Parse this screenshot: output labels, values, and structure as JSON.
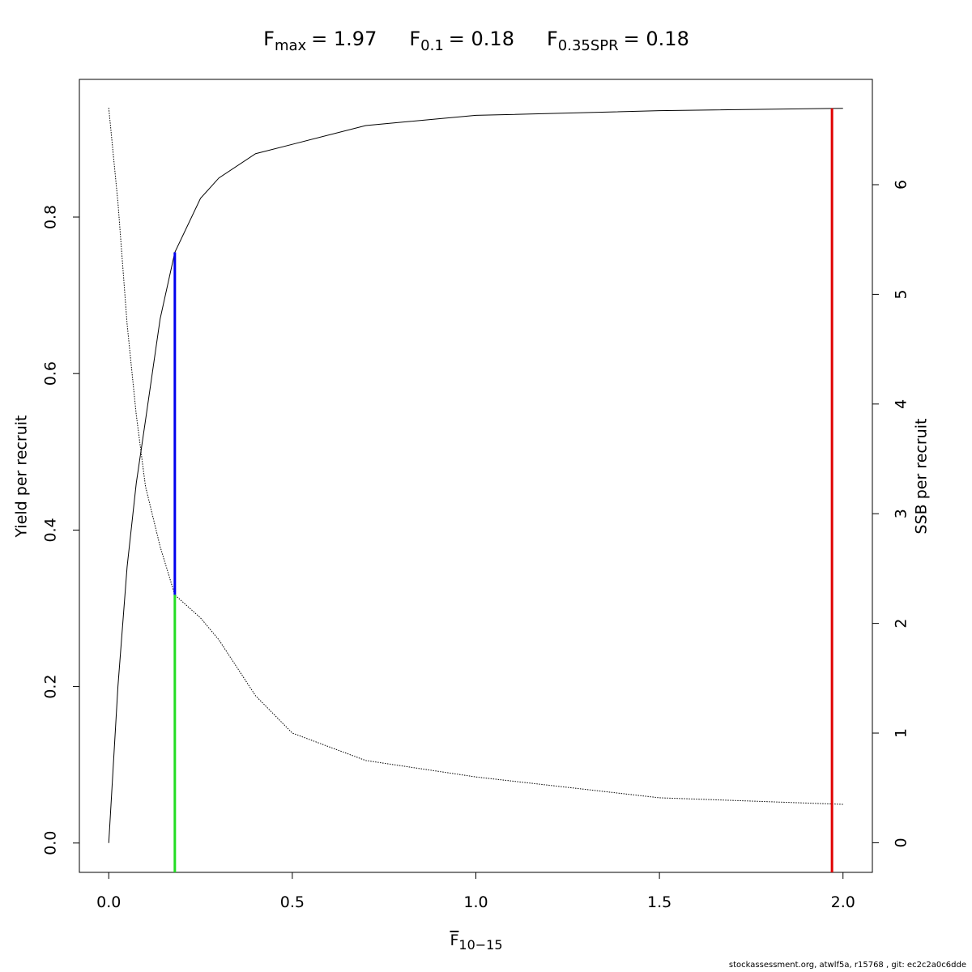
{
  "chart_data": {
    "type": "line",
    "title": [
      {
        "text": "F",
        "sub": "max",
        "rest": "= 1.97"
      },
      {
        "text": "F",
        "sub": "0.1",
        "rest": "= 0.18"
      },
      {
        "text": "F",
        "sub": "0.35SPR",
        "rest": "= 0.18"
      }
    ],
    "xlabel": {
      "text": "F",
      "sub": "10−15"
    },
    "ylabel": "Yield per recruit",
    "y2label": "SSB per recruit",
    "footer": "stockassessment.org, atwlf5a, r15768 , git: ec2c2a0c6dde",
    "x": [
      0,
      0.025,
      0.05,
      0.075,
      0.1,
      0.14,
      0.18,
      0.25,
      0.3,
      0.4,
      0.5,
      0.7,
      1.0,
      1.5,
      2.0
    ],
    "series": [
      {
        "name": "Yield per recruit",
        "color": "#000000",
        "style": "solid",
        "values": [
          0,
          0.2,
          0.353,
          0.46,
          0.54,
          0.67,
          0.755,
          0.824,
          0.85,
          0.881,
          0.893,
          0.917,
          0.93,
          0.936,
          0.939
        ]
      },
      {
        "name": "SSB per recruit",
        "color": "#000000",
        "style": "dotted",
        "axis": "y2",
        "values": [
          6.7,
          5.84,
          4.73,
          3.9,
          3.25,
          2.7,
          2.26,
          2.05,
          1.85,
          1.34,
          1.0,
          0.75,
          0.6,
          0.41,
          0.35
        ]
      }
    ],
    "ref_lines": [
      {
        "x": 1.97,
        "y_top": 0.939,
        "color": "#e00000"
      },
      {
        "x": 0.18,
        "y_top": 0.755,
        "y2_bottom": 2.26,
        "color": "#0000ee"
      },
      {
        "x": 0.18,
        "y2_top": 2.26,
        "color": "#22dd22"
      }
    ],
    "xlim": [
      -0.08,
      2.08
    ],
    "xticks": [
      {
        "value": 0,
        "label": "0.0"
      },
      {
        "value": 0.5,
        "label": "0.5"
      },
      {
        "value": 1,
        "label": "1.0"
      },
      {
        "value": 1.5,
        "label": "1.5"
      },
      {
        "value": 2,
        "label": "2.0"
      }
    ],
    "ylim": [
      -0.0375,
      0.976
    ],
    "yticks": [
      {
        "value": 0,
        "label": "0.0"
      },
      {
        "value": 0.2,
        "label": "0.2"
      },
      {
        "value": 0.4,
        "label": "0.4"
      },
      {
        "value": 0.6,
        "label": "0.6"
      },
      {
        "value": 0.8,
        "label": "0.8"
      }
    ],
    "y2lim": [
      -0.27,
      6.96
    ],
    "y2ticks": [
      0,
      1,
      2,
      3,
      4,
      5,
      6
    ]
  }
}
